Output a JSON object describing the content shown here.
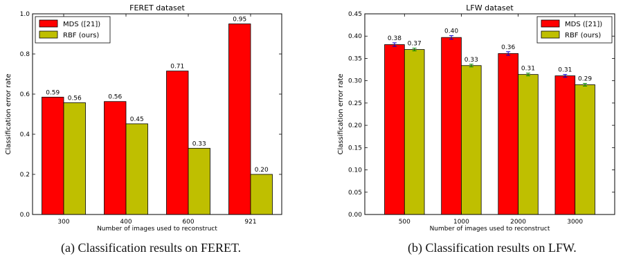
{
  "chart_data": [
    {
      "type": "bar",
      "title": "FERET dataset",
      "xlabel": "Number of images used to reconstruct",
      "ylabel": "Classification error rate",
      "categories": [
        "300",
        "400",
        "600",
        "921"
      ],
      "ylim": [
        0,
        1.0
      ],
      "yticks": [
        "0.0",
        "0.2",
        "0.4",
        "0.6",
        "0.8",
        "1.0"
      ],
      "legend_position": "top-left",
      "series": [
        {
          "name": "MDS ([21])",
          "color": "#ff0000",
          "values": [
            0.585,
            0.563,
            0.715,
            0.95
          ],
          "labels": [
            "0.59",
            "0.56",
            "0.71",
            "0.95"
          ]
        },
        {
          "name": "RBF (ours)",
          "color": "#bfbf00",
          "values": [
            0.557,
            0.452,
            0.33,
            0.2
          ],
          "labels": [
            "0.56",
            "0.45",
            "0.33",
            "0.20"
          ]
        }
      ]
    },
    {
      "type": "bar",
      "title": "LFW dataset",
      "xlabel": "Number of images used to reconstruct",
      "ylabel": "Classification error rate",
      "categories": [
        "500",
        "1000",
        "2000",
        "3000"
      ],
      "ylim": [
        0,
        0.45
      ],
      "yticks": [
        "0.00",
        "0.05",
        "0.10",
        "0.15",
        "0.20",
        "0.25",
        "0.30",
        "0.35",
        "0.40",
        "0.45"
      ],
      "legend_position": "top-right",
      "series": [
        {
          "name": "MDS ([21])",
          "color": "#ff0000",
          "values": [
            0.381,
            0.397,
            0.361,
            0.311
          ],
          "errors": [
            0.004,
            0.004,
            0.004,
            0.003
          ],
          "labels": [
            "0.38",
            "0.40",
            "0.36",
            "0.31"
          ]
        },
        {
          "name": "RBF (ours)",
          "color": "#bfbf00",
          "values": [
            0.37,
            0.334,
            0.314,
            0.291
          ],
          "errors": [
            0.003,
            0.003,
            0.003,
            0.003
          ],
          "labels": [
            "0.37",
            "0.33",
            "0.31",
            "0.29"
          ]
        }
      ]
    }
  ],
  "captions": {
    "a": "(a)  Classification results on FERET.",
    "b": "(b)  Classification results on LFW."
  }
}
